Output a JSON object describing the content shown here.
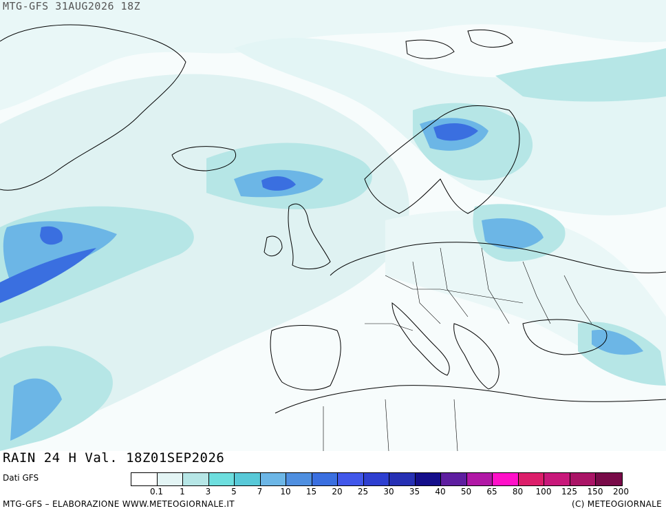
{
  "header": {
    "run": "MTG-GFS 31AUG2026 18Z"
  },
  "field": {
    "title": "RAIN 24 H Val. 18Z01SEP2026"
  },
  "source": "Dati GFS",
  "legend": {
    "unit": "",
    "ticks": [
      "0.1",
      "1",
      "3",
      "5",
      "7",
      "10",
      "15",
      "20",
      "25",
      "30",
      "35",
      "40",
      "50",
      "65",
      "80",
      "100",
      "125",
      "150",
      "200"
    ],
    "colors": [
      "#ffffff",
      "#e4f5f5",
      "#b6e6e6",
      "#6ddede",
      "#58c9d8",
      "#6cb6e6",
      "#4f8fe0",
      "#3a6fe0",
      "#4157ea",
      "#2e3fd0",
      "#2630b4",
      "#140e8a",
      "#5e1ea0",
      "#b118a6",
      "#ff10c8",
      "#dc1e6a",
      "#c8187a",
      "#aa1466",
      "#780a48"
    ]
  },
  "footer": {
    "left": "MTG-GFS – ELABORAZIONE WWW.METEOGIORNALE.IT",
    "right": "(C) METEOGIORNALE"
  }
}
